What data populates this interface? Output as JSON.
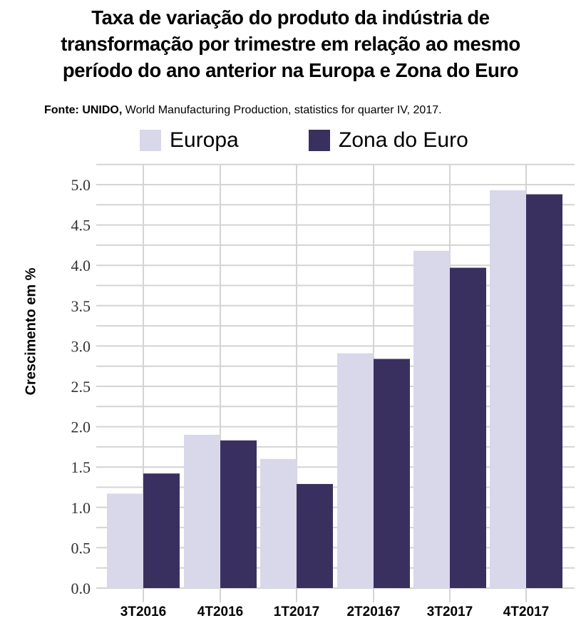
{
  "chart_data": {
    "type": "bar",
    "title": "Taxa de variação do produto da indústria de transformação por trimestre em relação ao mesmo período do ano anterior na Europa e Zona do Euro",
    "title_lines": [
      "Taxa de variação do produto da indústria de",
      "transformação por trimestre em relação ao mesmo",
      "período do ano anterior na Europa e Zona do Euro"
    ],
    "source_bold": "Fonte: UNIDO,",
    "source_rest": " World Manufacturing Production, statistics for quarter IV, 2017.",
    "xlabel": "",
    "ylabel": "Crescimento em %",
    "categories": [
      "3T2016",
      "4T2016",
      "1T2017",
      "2T20167",
      "3T2017",
      "4T2017"
    ],
    "series": [
      {
        "name": "Europa",
        "color": "#d9d7ea",
        "values": [
          1.17,
          1.9,
          1.6,
          2.91,
          4.18,
          4.93
        ]
      },
      {
        "name": "Zona do Euro",
        "color": "#3a3060",
        "values": [
          1.42,
          1.83,
          1.29,
          2.84,
          3.97,
          4.88
        ]
      }
    ],
    "ylim": [
      0,
      5.25
    ],
    "yticks": [
      0.0,
      0.5,
      1.0,
      1.5,
      2.0,
      2.5,
      3.0,
      3.5,
      4.0,
      4.5,
      5.0
    ],
    "minor_grid_step": 0.25,
    "grid": true,
    "legend_position": "top-center",
    "colors": {
      "grid": "#d4d4d4",
      "tick_text": "#333333"
    }
  }
}
